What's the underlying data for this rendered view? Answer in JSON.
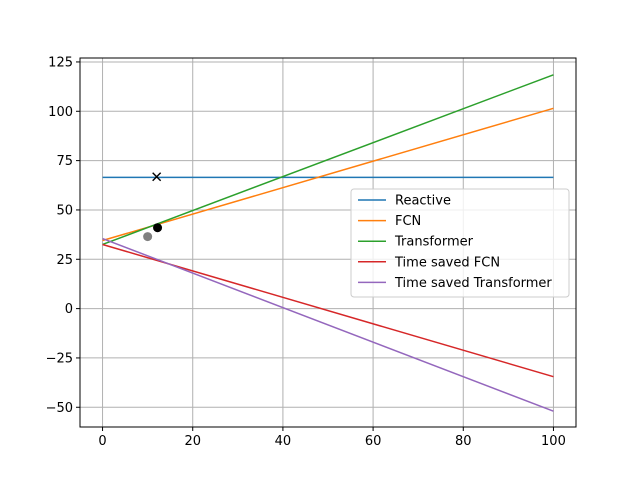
{
  "chart_data": {
    "type": "line",
    "xlim": [
      -5,
      105
    ],
    "ylim": [
      -60,
      127
    ],
    "xticks": [
      0,
      20,
      40,
      60,
      80,
      100
    ],
    "yticks": [
      -50,
      -25,
      0,
      25,
      50,
      75,
      100,
      125
    ],
    "xtick_labels": [
      "0",
      "20",
      "40",
      "60",
      "80",
      "100"
    ],
    "ytick_labels": [
      "−50",
      "−25",
      "0",
      "25",
      "50",
      "75",
      "100",
      "125"
    ],
    "grid": true,
    "legend_position": "center-right",
    "series": [
      {
        "name": "Reactive",
        "color": "#1f77b4",
        "x": [
          0,
          100
        ],
        "y": [
          66.5,
          66.5
        ]
      },
      {
        "name": "FCN",
        "color": "#ff7f0e",
        "x": [
          0,
          100
        ],
        "y": [
          34.5,
          101.5
        ]
      },
      {
        "name": "Transformer",
        "color": "#2ca02c",
        "x": [
          0,
          100
        ],
        "y": [
          32.5,
          118.5
        ]
      },
      {
        "name": "Time saved FCN",
        "color": "#d62728",
        "x": [
          0,
          100
        ],
        "y": [
          32.5,
          -34.5
        ]
      },
      {
        "name": "Time saved Transformer",
        "color": "#9467bd",
        "x": [
          0,
          100
        ],
        "y": [
          35.5,
          -52
        ]
      }
    ],
    "markers": [
      {
        "symbol": "x",
        "color": "#000000",
        "x": 12,
        "y": 66.8
      },
      {
        "symbol": "circle",
        "color": "#000000",
        "x": 12.2,
        "y": 41
      },
      {
        "symbol": "circle",
        "color": "#808080",
        "x": 10,
        "y": 36.5
      }
    ]
  }
}
